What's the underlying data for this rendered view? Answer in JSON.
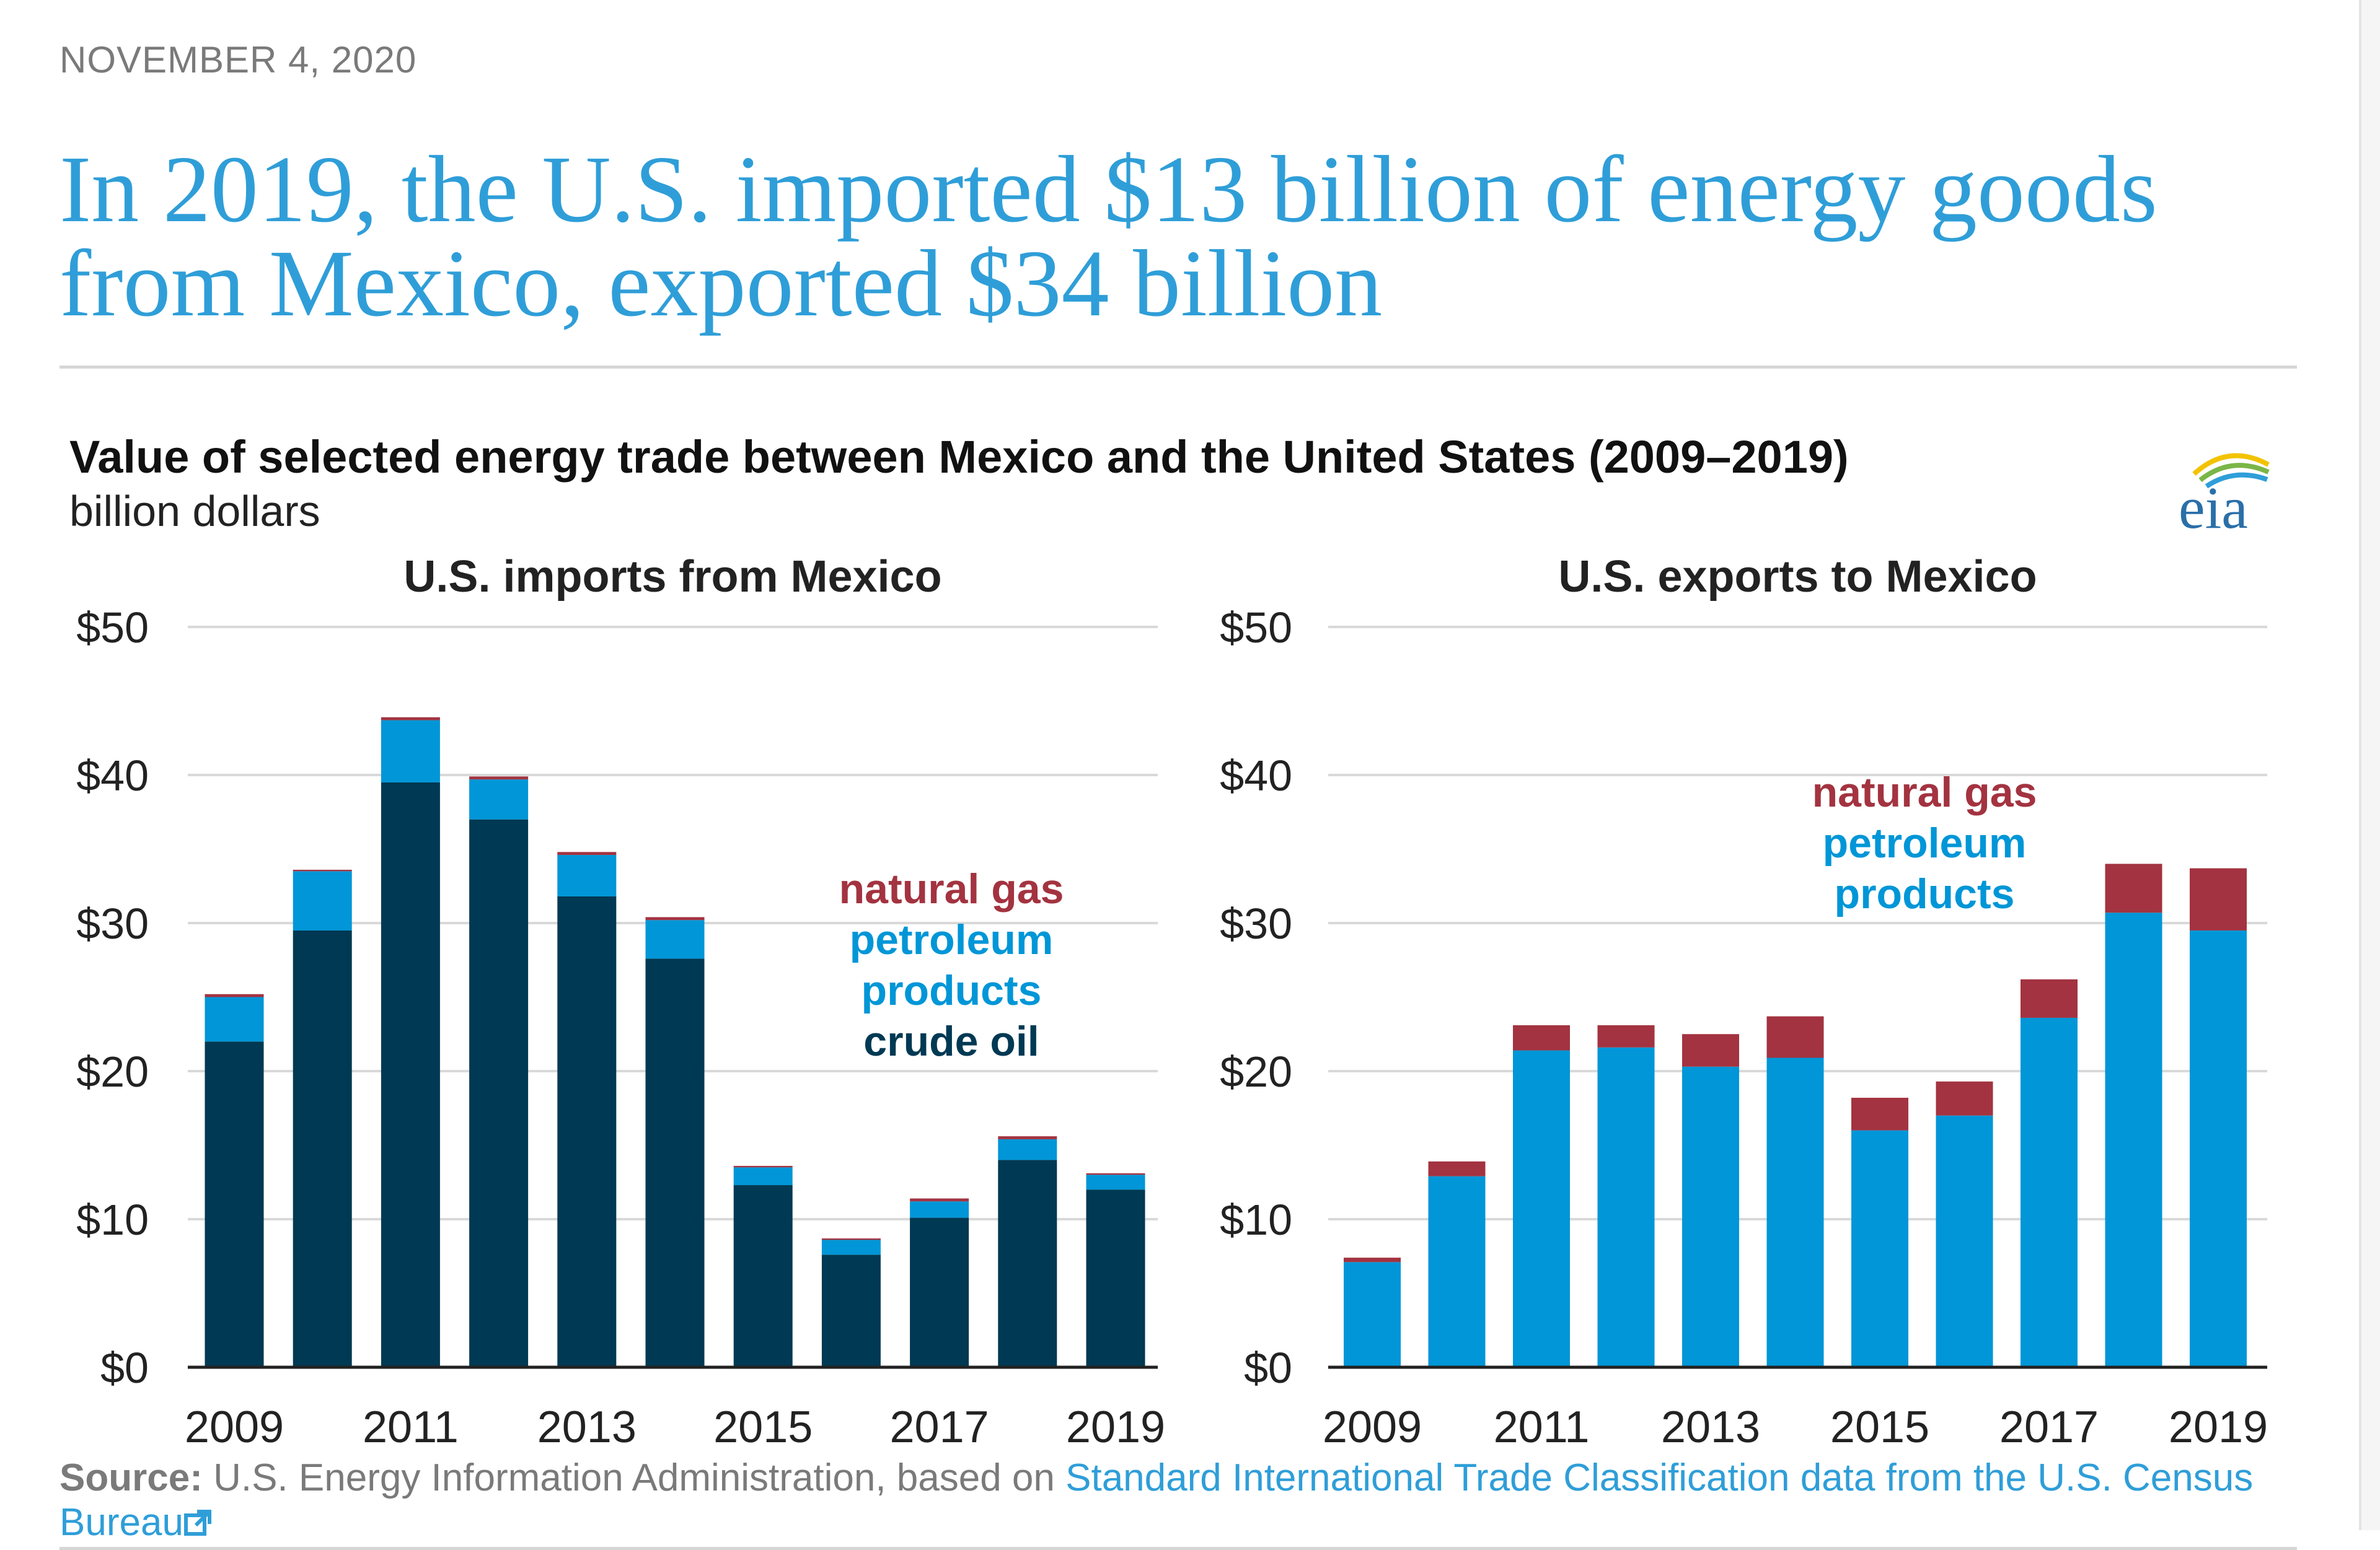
{
  "date": "NOVEMBER 4, 2020",
  "headline": "In 2019, the U.S. imported $13 billion of energy goods from Mexico, exported $34 billion",
  "chart_title": "Value of selected energy trade between Mexico and the United States (2009–2019)",
  "chart_units": "billion dollars",
  "logo_text": "eia",
  "source": {
    "label": "Source:",
    "text": " U.S. Energy Information Administration, based on ",
    "link_text": "Standard International Trade Classification data from the U.S. Census Bureau"
  },
  "colors": {
    "crude_oil": "#003953",
    "petroleum_products": "#0096d7",
    "natural_gas": "#a33340",
    "gridline": "#d9d9d9",
    "axis": "#222222",
    "headline": "#2f9ed8"
  },
  "chart_data": [
    {
      "type": "bar",
      "stacked": true,
      "title": "U.S. imports from Mexico",
      "ylabel": "billion dollars",
      "ylim": [
        0,
        50
      ],
      "yticks": [
        0,
        10,
        20,
        30,
        40,
        50
      ],
      "ytick_labels": [
        "$0",
        "$10",
        "$20",
        "$30",
        "$40",
        "$50"
      ],
      "categories": [
        "2009",
        "2010",
        "2011",
        "2012",
        "2013",
        "2014",
        "2015",
        "2016",
        "2017",
        "2018",
        "2019"
      ],
      "xtick_labels": [
        "2009",
        "2011",
        "2013",
        "2015",
        "2017",
        "2019"
      ],
      "series": [
        {
          "name": "crude oil",
          "values": [
            22.0,
            29.5,
            39.5,
            37.0,
            31.8,
            27.6,
            12.3,
            7.6,
            10.1,
            14.0,
            12.0
          ]
        },
        {
          "name": "petroleum products",
          "values": [
            3.0,
            4.0,
            4.2,
            2.7,
            2.8,
            2.6,
            1.2,
            1.0,
            1.1,
            1.4,
            1.0
          ]
        },
        {
          "name": "natural gas",
          "values": [
            0.2,
            0.1,
            0.2,
            0.2,
            0.2,
            0.2,
            0.1,
            0.1,
            0.2,
            0.2,
            0.1
          ]
        }
      ],
      "legend": {
        "position": "right",
        "entries": [
          {
            "lines": [
              "natural gas"
            ],
            "series": "natural gas"
          },
          {
            "lines": [
              "petroleum",
              "products"
            ],
            "series": "petroleum products"
          },
          {
            "lines": [
              "crude oil"
            ],
            "series": "crude oil"
          }
        ]
      }
    },
    {
      "type": "bar",
      "stacked": true,
      "title": "U.S. exports to Mexico",
      "ylabel": "billion dollars",
      "ylim": [
        0,
        50
      ],
      "yticks": [
        0,
        10,
        20,
        30,
        40,
        50
      ],
      "ytick_labels": [
        "$0",
        "$10",
        "$20",
        "$30",
        "$40",
        "$50"
      ],
      "categories": [
        "2009",
        "2010",
        "2011",
        "2012",
        "2013",
        "2014",
        "2015",
        "2016",
        "2017",
        "2018",
        "2019"
      ],
      "xtick_labels": [
        "2009",
        "2011",
        "2013",
        "2015",
        "2017",
        "2019"
      ],
      "series": [
        {
          "name": "petroleum products",
          "values": [
            7.1,
            12.9,
            21.4,
            21.6,
            20.3,
            20.9,
            16.0,
            17.0,
            23.6,
            30.7,
            29.5
          ]
        },
        {
          "name": "natural gas",
          "values": [
            0.3,
            1.0,
            1.7,
            1.5,
            2.2,
            2.8,
            2.2,
            2.3,
            2.6,
            3.3,
            4.2
          ]
        }
      ],
      "legend": {
        "position": "top-center",
        "entries": [
          {
            "lines": [
              "natural gas"
            ],
            "series": "natural gas"
          },
          {
            "lines": [
              "petroleum",
              "products"
            ],
            "series": "petroleum products"
          }
        ]
      }
    }
  ]
}
